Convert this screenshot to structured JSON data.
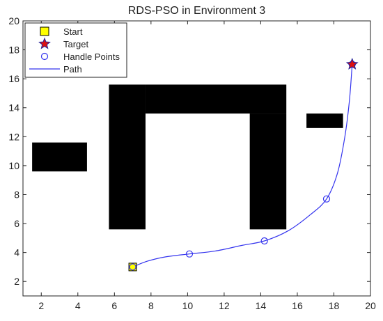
{
  "chart_data": {
    "type": "scatter",
    "title": "RDS-PSO in Environment 3",
    "xlabel": "",
    "ylabel": "",
    "xlim": [
      1,
      20
    ],
    "ylim": [
      1,
      20
    ],
    "x_ticks": [
      2,
      4,
      6,
      8,
      10,
      12,
      14,
      16,
      18,
      20
    ],
    "y_ticks": [
      2,
      4,
      6,
      8,
      10,
      12,
      14,
      16,
      18,
      20
    ],
    "grid": false,
    "legend_position": "top-left",
    "legend": [
      {
        "label": "Start",
        "marker": "square"
      },
      {
        "label": "Target",
        "marker": "star"
      },
      {
        "label": "Handle Points",
        "marker": "circle"
      },
      {
        "label": "Path",
        "marker": "line"
      }
    ],
    "start": {
      "x": 7.0,
      "y": 3.0
    },
    "target": {
      "x": 19.0,
      "y": 17.0
    },
    "handle_points": [
      {
        "x": 7.0,
        "y": 3.0
      },
      {
        "x": 10.1,
        "y": 3.9
      },
      {
        "x": 14.2,
        "y": 4.8
      },
      {
        "x": 17.6,
        "y": 7.7
      },
      {
        "x": 19.0,
        "y": 17.0
      }
    ],
    "path": [
      {
        "x": 7.0,
        "y": 3.0
      },
      {
        "x": 7.8,
        "y": 3.4
      },
      {
        "x": 8.8,
        "y": 3.7
      },
      {
        "x": 10.1,
        "y": 3.9
      },
      {
        "x": 11.5,
        "y": 4.1
      },
      {
        "x": 13.0,
        "y": 4.5
      },
      {
        "x": 14.2,
        "y": 4.8
      },
      {
        "x": 15.5,
        "y": 5.5
      },
      {
        "x": 16.7,
        "y": 6.6
      },
      {
        "x": 17.6,
        "y": 7.7
      },
      {
        "x": 18.2,
        "y": 9.5
      },
      {
        "x": 18.6,
        "y": 12.0
      },
      {
        "x": 18.85,
        "y": 14.5
      },
      {
        "x": 19.0,
        "y": 17.0
      }
    ],
    "obstacles": [
      {
        "x0": 1.5,
        "x1": 4.5,
        "y0": 9.6,
        "y1": 11.6
      },
      {
        "x0": 5.7,
        "x1": 7.7,
        "y0": 5.6,
        "y1": 15.6
      },
      {
        "x0": 7.7,
        "x1": 15.4,
        "y0": 13.6,
        "y1": 15.6
      },
      {
        "x0": 13.4,
        "x1": 15.4,
        "y0": 5.6,
        "y1": 13.6
      },
      {
        "x0": 16.5,
        "x1": 18.5,
        "y0": 12.6,
        "y1": 13.6
      }
    ],
    "colors": {
      "obstacle": "#000000",
      "path": "#3333ee",
      "handle": "#3333ee",
      "start_fill": "#ffff00",
      "target_fill": "#dd1111",
      "target_edge": "#222299",
      "axis": "#222222"
    }
  }
}
